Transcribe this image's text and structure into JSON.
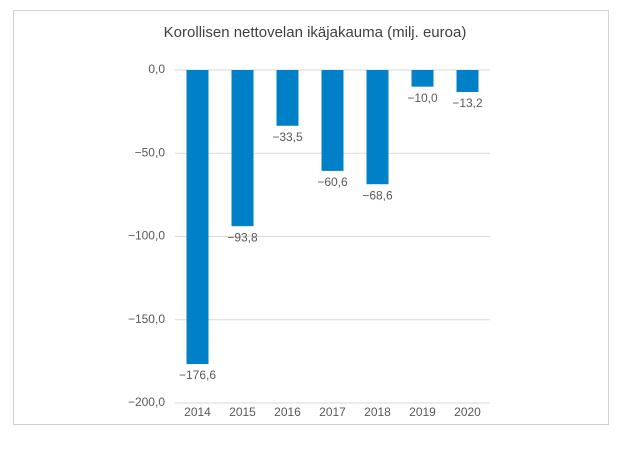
{
  "chart_data": {
    "type": "bar",
    "title": "Korollisen nettovelan ikäjakauma (milj. euroa)",
    "categories": [
      "2014",
      "2015",
      "2016",
      "2017",
      "2018",
      "2019",
      "2020"
    ],
    "values": [
      -176.6,
      -93.8,
      -33.5,
      -60.6,
      -68.6,
      -10.0,
      -13.2
    ],
    "value_labels": [
      "−176,6",
      "−93,8",
      "−33,5",
      "−60,6",
      "−68,6",
      "−10,0",
      "−13,2"
    ],
    "color": "#0080c6",
    "ylim": [
      -200,
      0
    ],
    "yticks": [
      {
        "value": 0,
        "label": "0,0"
      },
      {
        "value": -50,
        "label": "−50,0"
      },
      {
        "value": -100,
        "label": "−100,0"
      },
      {
        "value": -150,
        "label": "−150,0"
      },
      {
        "value": -200,
        "label": "−200,0"
      }
    ],
    "grid": true
  }
}
